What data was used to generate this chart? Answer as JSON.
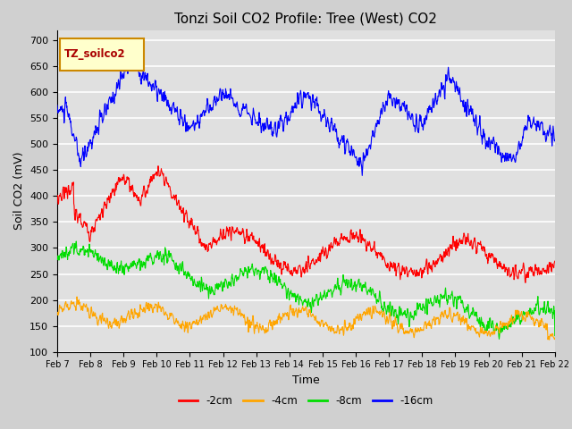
{
  "title": "Tonzi Soil CO2 Profile: Tree (West) CO2",
  "ylabel": "Soil CO2 (mV)",
  "xlabel": "Time",
  "ylim": [
    100,
    720
  ],
  "yticks": [
    100,
    150,
    200,
    250,
    300,
    350,
    400,
    450,
    500,
    550,
    600,
    650,
    700
  ],
  "xtick_labels": [
    "Feb 7",
    "Feb 8",
    "Feb 9",
    "Feb 10",
    "Feb 11",
    "Feb 12",
    "Feb 13",
    "Feb 14",
    "Feb 15",
    "Feb 16",
    "Feb 17",
    "Feb 18",
    "Feb 19",
    "Feb 20",
    "Feb 21",
    "Feb 22"
  ],
  "series": {
    "-2cm": {
      "color": "#ff0000",
      "label": "-2cm"
    },
    "-4cm": {
      "color": "#ffa500",
      "label": "-4cm"
    },
    "-8cm": {
      "color": "#00dd00",
      "label": "-8cm"
    },
    "-16cm": {
      "color": "#0000ff",
      "label": "-16cm"
    }
  },
  "legend_box_color": "#ffffcc",
  "legend_box_edge": "#cc8800",
  "legend_box_text": "TZ_soilco2",
  "plot_bg_color": "#e0e0e0",
  "fig_bg_color": "#d0d0d0",
  "grid_color": "#ffffff",
  "title_fontsize": 11,
  "label_fontsize": 9,
  "tick_fontsize": 8
}
